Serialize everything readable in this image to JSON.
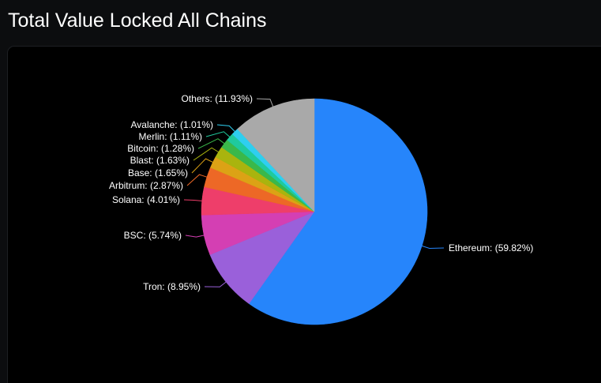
{
  "page": {
    "title": "Total Value Locked All Chains"
  },
  "chart_data": {
    "type": "pie",
    "title": "Total Value Locked All Chains",
    "unit": "%",
    "start_angle_deg": 0,
    "direction": "clockwise",
    "slices": [
      {
        "name": "Ethereum",
        "value": 59.82,
        "label": "Ethereum: (59.82%)",
        "color": "#2585fb"
      },
      {
        "name": "Tron",
        "value": 8.95,
        "label": "Tron: (8.95%)",
        "color": "#9a60da"
      },
      {
        "name": "BSC",
        "value": 5.74,
        "label": "BSC: (5.74%)",
        "color": "#d43fb3"
      },
      {
        "name": "Solana",
        "value": 4.01,
        "label": "Solana: (4.01%)",
        "color": "#ee3e6a"
      },
      {
        "name": "Arbitrum",
        "value": 2.87,
        "label": "Arbitrum: (2.87%)",
        "color": "#ed6826"
      },
      {
        "name": "Base",
        "value": 1.65,
        "label": "Base: (1.65%)",
        "color": "#dca215"
      },
      {
        "name": "Blast",
        "value": 1.63,
        "label": "Blast: (1.63%)",
        "color": "#a9b40e"
      },
      {
        "name": "Bitcoin",
        "value": 1.28,
        "label": "Bitcoin: (1.28%)",
        "color": "#3ab84a"
      },
      {
        "name": "Merlin",
        "value": 1.11,
        "label": "Merlin: (1.11%)",
        "color": "#1fca9d"
      },
      {
        "name": "Avalanche",
        "value": 1.01,
        "label": "Avalanche: (1.01%)",
        "color": "#2ecff0"
      },
      {
        "name": "Others",
        "value": 11.93,
        "label": "Others: (11.93%)",
        "color": "#a9a9a9"
      }
    ]
  }
}
